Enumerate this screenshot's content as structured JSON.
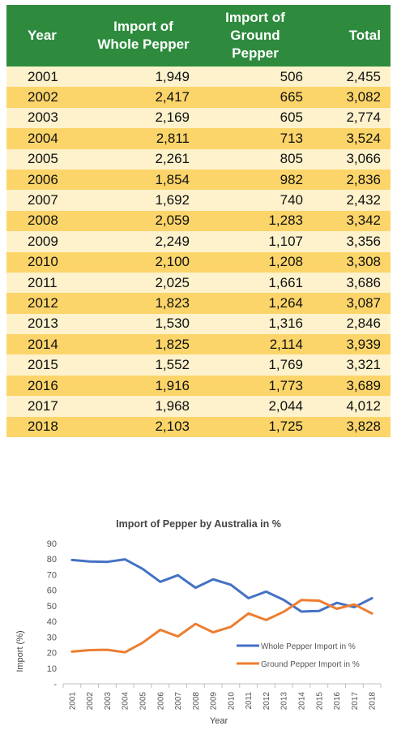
{
  "table": {
    "headers": {
      "year": "Year",
      "whole_line1": "Import of",
      "whole_line2": "Whole Pepper",
      "ground_line1": "Import of",
      "ground_line2": "Ground Pepper",
      "total": "Total"
    },
    "rows": [
      {
        "year": "2001",
        "whole": "1,949",
        "ground": "506",
        "total": "2,455"
      },
      {
        "year": "2002",
        "whole": "2,417",
        "ground": "665",
        "total": "3,082"
      },
      {
        "year": "2003",
        "whole": "2,169",
        "ground": "605",
        "total": "2,774"
      },
      {
        "year": "2004",
        "whole": "2,811",
        "ground": "713",
        "total": "3,524"
      },
      {
        "year": "2005",
        "whole": "2,261",
        "ground": "805",
        "total": "3,066"
      },
      {
        "year": "2006",
        "whole": "1,854",
        "ground": "982",
        "total": "2,836"
      },
      {
        "year": "2007",
        "whole": "1,692",
        "ground": "740",
        "total": "2,432"
      },
      {
        "year": "2008",
        "whole": "2,059",
        "ground": "1,283",
        "total": "3,342"
      },
      {
        "year": "2009",
        "whole": "2,249",
        "ground": "1,107",
        "total": "3,356"
      },
      {
        "year": "2010",
        "whole": "2,100",
        "ground": "1,208",
        "total": "3,308"
      },
      {
        "year": "2011",
        "whole": "2,025",
        "ground": "1,661",
        "total": "3,686"
      },
      {
        "year": "2012",
        "whole": "1,823",
        "ground": "1,264",
        "total": "3,087"
      },
      {
        "year": "2013",
        "whole": "1,530",
        "ground": "1,316",
        "total": "2,846"
      },
      {
        "year": "2014",
        "whole": "1,825",
        "ground": "2,114",
        "total": "3,939"
      },
      {
        "year": "2015",
        "whole": "1,552",
        "ground": "1,769",
        "total": "3,321"
      },
      {
        "year": "2016",
        "whole": "1,916",
        "ground": "1,773",
        "total": "3,689"
      },
      {
        "year": "2017",
        "whole": "1,968",
        "ground": "2,044",
        "total": "4,012"
      },
      {
        "year": "2018",
        "whole": "2,103",
        "ground": "1,725",
        "total": "3,828"
      }
    ],
    "colors": {
      "header": "#2e8b3e",
      "row_light": "#fdf2cc",
      "row_dark": "#fcd56a"
    }
  },
  "chart_data": {
    "type": "line",
    "title": "Import of Pepper by Australia in %",
    "xlabel": "Year",
    "ylabel": "Import (%)",
    "x": [
      "2001",
      "2002",
      "2003",
      "2004",
      "2005",
      "2006",
      "2007",
      "2008",
      "2009",
      "2010",
      "2011",
      "2012",
      "2013",
      "2014",
      "2015",
      "2016",
      "2017",
      "2018"
    ],
    "ylim": [
      0,
      90
    ],
    "yticks": [
      0,
      10,
      20,
      30,
      40,
      50,
      60,
      70,
      80,
      90
    ],
    "ytick_labels": [
      "-",
      "10",
      "20",
      "30",
      "40",
      "50",
      "60",
      "70",
      "80",
      "90"
    ],
    "grid": false,
    "legend_position": "bottom-right",
    "series": [
      {
        "name": "Whole Pepper Import in %",
        "color": "#4472c4",
        "values": [
          79.4,
          78.4,
          78.2,
          79.8,
          73.7,
          65.4,
          69.6,
          61.6,
          67.0,
          63.5,
          54.9,
          59.1,
          53.8,
          46.3,
          46.7,
          51.9,
          49.1,
          54.9
        ]
      },
      {
        "name": "Ground Pepper Import in %",
        "color": "#ed7d31",
        "values": [
          20.6,
          21.6,
          21.8,
          20.2,
          26.3,
          34.6,
          30.4,
          38.4,
          33.0,
          36.5,
          45.1,
          40.9,
          46.2,
          53.7,
          53.3,
          48.1,
          50.9,
          45.1
        ]
      }
    ]
  }
}
